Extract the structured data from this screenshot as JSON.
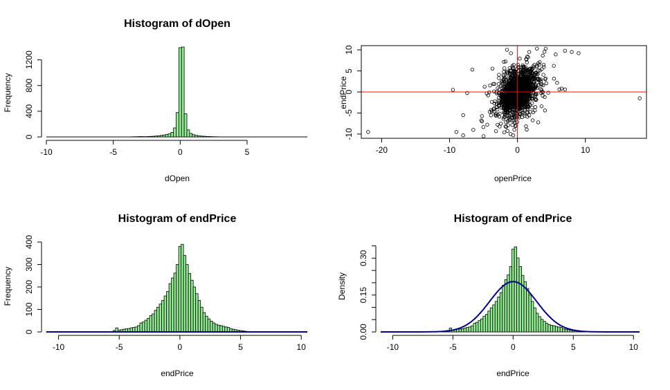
{
  "chart_data": [
    {
      "type": "bar",
      "title": "Histogram of dOpen",
      "xlabel": "dOpen",
      "ylabel": "Frequency",
      "xlim": [
        -10,
        9.5
      ],
      "ylim": [
        0,
        1400
      ],
      "xticks": [
        "-10",
        "-5",
        "0",
        "5"
      ],
      "xtick_values": [
        -10,
        -5,
        0,
        5
      ],
      "yticks": [
        "0",
        "400",
        "800",
        "1200"
      ],
      "ytick_values": [
        0,
        400,
        800,
        1200
      ],
      "bin_width": 0.2,
      "bins": [
        {
          "x": -3.6,
          "y": 2
        },
        {
          "x": -3.4,
          "y": 3
        },
        {
          "x": -3.2,
          "y": 4
        },
        {
          "x": -3.0,
          "y": 6
        },
        {
          "x": -2.8,
          "y": 5
        },
        {
          "x": -2.6,
          "y": 4
        },
        {
          "x": -2.4,
          "y": 6
        },
        {
          "x": -2.2,
          "y": 8
        },
        {
          "x": -2.0,
          "y": 10
        },
        {
          "x": -1.8,
          "y": 14
        },
        {
          "x": -1.6,
          "y": 18
        },
        {
          "x": -1.4,
          "y": 24
        },
        {
          "x": -1.2,
          "y": 30
        },
        {
          "x": -1.0,
          "y": 38
        },
        {
          "x": -0.8,
          "y": 48
        },
        {
          "x": -0.6,
          "y": 70
        },
        {
          "x": -0.4,
          "y": 140
        },
        {
          "x": -0.2,
          "y": 380
        },
        {
          "x": 0.0,
          "y": 1390
        },
        {
          "x": 0.2,
          "y": 1400
        },
        {
          "x": 0.4,
          "y": 360
        },
        {
          "x": 0.6,
          "y": 110
        },
        {
          "x": 0.8,
          "y": 55
        },
        {
          "x": 1.0,
          "y": 35
        },
        {
          "x": 1.2,
          "y": 24
        },
        {
          "x": 1.4,
          "y": 18
        },
        {
          "x": 1.6,
          "y": 13
        },
        {
          "x": 1.8,
          "y": 10
        },
        {
          "x": 2.0,
          "y": 7
        },
        {
          "x": 2.2,
          "y": 6
        },
        {
          "x": 2.4,
          "y": 4
        },
        {
          "x": 2.6,
          "y": 3
        },
        {
          "x": 2.8,
          "y": 2
        }
      ],
      "bar_color": "#90ee90"
    },
    {
      "type": "scatter",
      "title": "",
      "xlabel": "openPrice",
      "ylabel": "endPrice",
      "xlim": [
        -23,
        19
      ],
      "ylim": [
        -11,
        11
      ],
      "xticks": [
        "-20",
        "-10",
        "0",
        "10"
      ],
      "xtick_values": [
        -20,
        -10,
        0,
        10
      ],
      "yticks": [
        "-10",
        "-5",
        "0",
        "5",
        "10"
      ],
      "ytick_values": [
        -10,
        -5,
        0,
        5,
        10
      ],
      "ref_lines": {
        "h": 0,
        "v": 0,
        "color": "#ff0000"
      },
      "outliers": [
        {
          "x": -22,
          "y": -9.5
        },
        {
          "x": 18,
          "y": -1.5
        },
        {
          "x": -9.5,
          "y": 0.5
        },
        {
          "x": -9,
          "y": -9.5
        },
        {
          "x": 8,
          "y": 9.5
        },
        {
          "x": 9,
          "y": 9.2
        },
        {
          "x": 7,
          "y": 9.8
        },
        {
          "x": 6.5,
          "y": 0.8
        },
        {
          "x": 7,
          "y": 0.6
        },
        {
          "x": -5,
          "y": -10.5
        },
        {
          "x": -6.5,
          "y": -9
        },
        {
          "x": -8,
          "y": -5.5
        }
      ],
      "cloud": {
        "n": 1500,
        "sd_x": 1.3,
        "sd_y": 2.6,
        "correlation": 0.35
      },
      "point_color": "#000000"
    },
    {
      "type": "bar",
      "title": "Histogram of endPrice",
      "xlabel": "endPrice",
      "ylabel": "Frequency",
      "xlim": [
        -11,
        10.5
      ],
      "ylim": [
        0,
        400
      ],
      "xticks": [
        "-10",
        "-5",
        "0",
        "5",
        "10"
      ],
      "xtick_values": [
        -10,
        -5,
        0,
        5,
        10
      ],
      "yticks": [
        "0",
        "100",
        "200",
        "300",
        "400"
      ],
      "ytick_values": [
        0,
        100,
        200,
        300,
        400
      ],
      "bin_width": 0.2,
      "bins": [
        {
          "x": -5.4,
          "y": 6
        },
        {
          "x": -5.2,
          "y": 18
        },
        {
          "x": -5.0,
          "y": 8
        },
        {
          "x": -4.8,
          "y": 10
        },
        {
          "x": -4.6,
          "y": 12
        },
        {
          "x": -4.4,
          "y": 14
        },
        {
          "x": -4.2,
          "y": 15
        },
        {
          "x": -4.0,
          "y": 18
        },
        {
          "x": -3.8,
          "y": 20
        },
        {
          "x": -3.6,
          "y": 22
        },
        {
          "x": -3.4,
          "y": 28
        },
        {
          "x": -3.2,
          "y": 40
        },
        {
          "x": -3.0,
          "y": 44
        },
        {
          "x": -2.8,
          "y": 52
        },
        {
          "x": -2.6,
          "y": 60
        },
        {
          "x": -2.4,
          "y": 72
        },
        {
          "x": -2.2,
          "y": 80
        },
        {
          "x": -2.0,
          "y": 96
        },
        {
          "x": -1.8,
          "y": 110
        },
        {
          "x": -1.6,
          "y": 124
        },
        {
          "x": -1.4,
          "y": 140
        },
        {
          "x": -1.2,
          "y": 160
        },
        {
          "x": -1.0,
          "y": 180
        },
        {
          "x": -0.8,
          "y": 215
        },
        {
          "x": -0.6,
          "y": 240
        },
        {
          "x": -0.4,
          "y": 262
        },
        {
          "x": -0.2,
          "y": 300
        },
        {
          "x": 0.0,
          "y": 380
        },
        {
          "x": 0.2,
          "y": 390
        },
        {
          "x": 0.4,
          "y": 340
        },
        {
          "x": 0.6,
          "y": 300
        },
        {
          "x": 0.8,
          "y": 260
        },
        {
          "x": 1.0,
          "y": 230
        },
        {
          "x": 1.2,
          "y": 200
        },
        {
          "x": 1.4,
          "y": 170
        },
        {
          "x": 1.6,
          "y": 140
        },
        {
          "x": 1.8,
          "y": 110
        },
        {
          "x": 2.0,
          "y": 86
        },
        {
          "x": 2.2,
          "y": 70
        },
        {
          "x": 2.4,
          "y": 58
        },
        {
          "x": 2.6,
          "y": 48
        },
        {
          "x": 2.8,
          "y": 40
        },
        {
          "x": 3.0,
          "y": 34
        },
        {
          "x": 3.2,
          "y": 30
        },
        {
          "x": 3.4,
          "y": 28
        },
        {
          "x": 3.6,
          "y": 25
        },
        {
          "x": 3.8,
          "y": 22
        },
        {
          "x": 4.0,
          "y": 20
        },
        {
          "x": 4.2,
          "y": 15
        },
        {
          "x": 4.4,
          "y": 12
        },
        {
          "x": 4.6,
          "y": 10
        },
        {
          "x": 4.8,
          "y": 8
        },
        {
          "x": 5.0,
          "y": 6
        },
        {
          "x": 5.2,
          "y": 5
        },
        {
          "x": 5.4,
          "y": 3
        },
        {
          "x": 5.6,
          "y": 2
        }
      ],
      "bar_color": "#90ee90",
      "line_color": "#00008b"
    },
    {
      "type": "bar",
      "title": "Histogram of endPrice",
      "xlabel": "endPrice",
      "ylabel": "Density",
      "xlim": [
        -11,
        10.5
      ],
      "ylim": [
        0,
        0.36
      ],
      "xticks": [
        "-10",
        "-5",
        "0",
        "5",
        "10"
      ],
      "xtick_values": [
        -10,
        -5,
        0,
        5,
        10
      ],
      "yticks": [
        "0.00",
        "0.15",
        "0.30"
      ],
      "ytick_values": [
        0,
        0.15,
        0.3
      ],
      "yminor_values": [
        0.05,
        0.1,
        0.2,
        0.25,
        0.35
      ],
      "bin_width": 0.2,
      "bins": [
        {
          "x": -5.4,
          "y": 0.006
        },
        {
          "x": -5.2,
          "y": 0.016
        },
        {
          "x": -5.0,
          "y": 0.007
        },
        {
          "x": -4.8,
          "y": 0.009
        },
        {
          "x": -4.6,
          "y": 0.011
        },
        {
          "x": -4.4,
          "y": 0.012
        },
        {
          "x": -4.2,
          "y": 0.013
        },
        {
          "x": -4.0,
          "y": 0.016
        },
        {
          "x": -3.8,
          "y": 0.018
        },
        {
          "x": -3.6,
          "y": 0.02
        },
        {
          "x": -3.4,
          "y": 0.025
        },
        {
          "x": -3.2,
          "y": 0.035
        },
        {
          "x": -3.0,
          "y": 0.039
        },
        {
          "x": -2.8,
          "y": 0.046
        },
        {
          "x": -2.6,
          "y": 0.053
        },
        {
          "x": -2.4,
          "y": 0.064
        },
        {
          "x": -2.2,
          "y": 0.071
        },
        {
          "x": -2.0,
          "y": 0.085
        },
        {
          "x": -1.8,
          "y": 0.098
        },
        {
          "x": -1.6,
          "y": 0.11
        },
        {
          "x": -1.4,
          "y": 0.124
        },
        {
          "x": -1.2,
          "y": 0.142
        },
        {
          "x": -1.0,
          "y": 0.16
        },
        {
          "x": -0.8,
          "y": 0.19
        },
        {
          "x": -0.6,
          "y": 0.213
        },
        {
          "x": -0.4,
          "y": 0.232
        },
        {
          "x": -0.2,
          "y": 0.266
        },
        {
          "x": 0.0,
          "y": 0.337
        },
        {
          "x": 0.2,
          "y": 0.346
        },
        {
          "x": 0.4,
          "y": 0.301
        },
        {
          "x": 0.6,
          "y": 0.266
        },
        {
          "x": 0.8,
          "y": 0.23
        },
        {
          "x": 1.0,
          "y": 0.204
        },
        {
          "x": 1.2,
          "y": 0.177
        },
        {
          "x": 1.4,
          "y": 0.151
        },
        {
          "x": 1.6,
          "y": 0.124
        },
        {
          "x": 1.8,
          "y": 0.098
        },
        {
          "x": 2.0,
          "y": 0.076
        },
        {
          "x": 2.2,
          "y": 0.062
        },
        {
          "x": 2.4,
          "y": 0.051
        },
        {
          "x": 2.6,
          "y": 0.043
        },
        {
          "x": 2.8,
          "y": 0.035
        },
        {
          "x": 3.0,
          "y": 0.03
        },
        {
          "x": 3.2,
          "y": 0.027
        },
        {
          "x": 3.4,
          "y": 0.025
        },
        {
          "x": 3.6,
          "y": 0.022
        },
        {
          "x": 3.8,
          "y": 0.02
        },
        {
          "x": 4.0,
          "y": 0.018
        },
        {
          "x": 4.2,
          "y": 0.013
        },
        {
          "x": 4.4,
          "y": 0.011
        },
        {
          "x": 4.6,
          "y": 0.009
        },
        {
          "x": 4.8,
          "y": 0.007
        },
        {
          "x": 5.0,
          "y": 0.005
        },
        {
          "x": 5.2,
          "y": 0.004
        },
        {
          "x": 5.4,
          "y": 0.003
        },
        {
          "x": 5.6,
          "y": 0.002
        }
      ],
      "density_curve": {
        "type": "normal",
        "mean": 0.0,
        "sd": 1.95
      },
      "bar_color": "#90ee90",
      "line_color": "#00008b"
    }
  ]
}
